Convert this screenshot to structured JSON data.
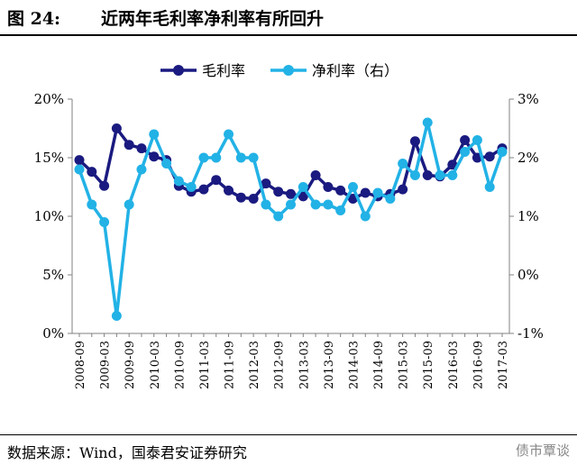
{
  "header": {
    "figure_label": "图 24:",
    "title": "近两年毛利率净利率有所回升"
  },
  "footer": {
    "source": "数据来源：Wind，国泰君安证券研究",
    "brand": "债市覃谈"
  },
  "colors": {
    "gross": "#1a1a80",
    "net": "#22b2e6",
    "axis": "#808080"
  },
  "chart_data": {
    "type": "line",
    "x": [
      "2008-09",
      "2008-12",
      "2009-03",
      "2009-06",
      "2009-09",
      "2009-12",
      "2010-03",
      "2010-06",
      "2010-09",
      "2010-12",
      "2011-03",
      "2011-06",
      "2011-09",
      "2011-12",
      "2012-03",
      "2012-06",
      "2012-09",
      "2012-12",
      "2013-03",
      "2013-06",
      "2013-09",
      "2013-12",
      "2014-03",
      "2014-06",
      "2014-09",
      "2014-12",
      "2015-03",
      "2015-06",
      "2015-09",
      "2015-12",
      "2016-03",
      "2016-06",
      "2016-09",
      "2016-12",
      "2017-03"
    ],
    "x_tick_labels": [
      "2008-09",
      "2009-03",
      "2009-09",
      "2010-03",
      "2010-09",
      "2011-03",
      "2011-09",
      "2012-03",
      "2012-09",
      "2013-03",
      "2013-09",
      "2014-03",
      "2014-09",
      "2015-03",
      "2015-09",
      "2016-03",
      "2016-09",
      "2017-03"
    ],
    "series": [
      {
        "name": "毛利率",
        "axis": "left",
        "unit": "%",
        "values": [
          14.8,
          13.8,
          12.6,
          17.5,
          16.1,
          15.8,
          15.1,
          14.8,
          12.6,
          12.1,
          12.3,
          13.1,
          12.2,
          11.6,
          11.5,
          12.8,
          12.1,
          11.9,
          11.7,
          13.5,
          12.5,
          12.2,
          11.5,
          12.0,
          11.7,
          11.9,
          12.3,
          16.4,
          13.5,
          13.4,
          14.4,
          16.5,
          15.0,
          15.1,
          15.8
        ]
      },
      {
        "name": "净利率（右）",
        "axis": "right",
        "unit": "%",
        "values": [
          1.8,
          1.2,
          0.9,
          -0.7,
          1.2,
          1.8,
          2.4,
          1.9,
          1.6,
          1.5,
          2.0,
          2.0,
          2.4,
          2.0,
          2.0,
          1.2,
          1.0,
          1.2,
          1.5,
          1.2,
          1.2,
          1.1,
          1.5,
          1.0,
          1.4,
          1.3,
          1.9,
          1.7,
          2.6,
          1.7,
          1.7,
          2.1,
          2.3,
          1.5,
          2.1
        ]
      }
    ],
    "y_left": {
      "min": 0,
      "max": 20,
      "ticks": [
        "0%",
        "5%",
        "10%",
        "15%",
        "20%"
      ]
    },
    "y_right": {
      "min": -1,
      "max": 3,
      "ticks": [
        "-1%",
        "0%",
        "1%",
        "2%",
        "3%"
      ]
    },
    "legend": {
      "position": "top-center",
      "entries": [
        "毛利率",
        "净利率（右）"
      ]
    },
    "grid": false
  }
}
